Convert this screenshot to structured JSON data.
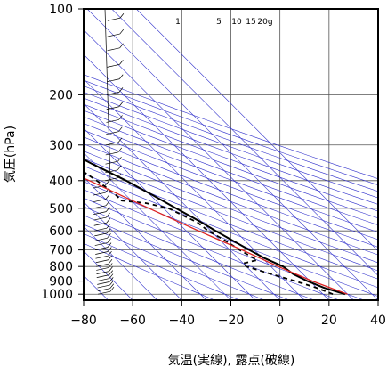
{
  "chart_data": {
    "type": "skew-t",
    "xlabel": "気温(実線), 露点(破線)",
    "ylabel": "気圧(hPa)",
    "xlim": [
      -80,
      40
    ],
    "ylim_hpa": [
      1050,
      100
    ],
    "y_scale": "log",
    "grid": true,
    "pressure_ticks": [
      100,
      200,
      300,
      400,
      500,
      600,
      700,
      800,
      900,
      1000
    ],
    "pressure_tick_labels": [
      "100",
      "200",
      "300",
      "400",
      "500",
      "600",
      "700",
      "800",
      "900",
      "1000"
    ],
    "temperature_ticks": [
      -80,
      -60,
      -40,
      -20,
      0,
      20,
      40
    ],
    "temperature_tick_labels": [
      "−80",
      "−60",
      "−40",
      "−20",
      "0",
      "20",
      "40"
    ],
    "mixing_ratio_labels": [
      "1",
      "5",
      "10",
      "15",
      "20g"
    ],
    "series": [
      {
        "style": "solid-black",
        "points": [
          {
            "p": 1000,
            "t": 29
          },
          {
            "p": 950,
            "t": 23
          },
          {
            "p": 900,
            "t": 19
          },
          {
            "p": 850,
            "t": 16
          },
          {
            "p": 800,
            "t": 15
          },
          {
            "p": 750,
            "t": 11
          },
          {
            "p": 700,
            "t": 8
          },
          {
            "p": 650,
            "t": 5
          },
          {
            "p": 600,
            "t": 2
          },
          {
            "p": 550,
            "t": -1
          },
          {
            "p": 500,
            "t": -5
          },
          {
            "p": 450,
            "t": -9
          },
          {
            "p": 400,
            "t": -14
          },
          {
            "p": 350,
            "t": -21
          },
          {
            "p": 300,
            "t": -28
          },
          {
            "p": 250,
            "t": -37
          },
          {
            "p": 200,
            "t": -47
          },
          {
            "p": 170,
            "t": -55
          },
          {
            "p": 150,
            "t": -60
          },
          {
            "p": 130,
            "t": -62
          },
          {
            "p": 110,
            "t": -65
          },
          {
            "p": 100,
            "t": -68
          }
        ]
      },
      {
        "style": "dashed-black",
        "points": [
          {
            "p": 1000,
            "t": 24
          },
          {
            "p": 950,
            "t": 20
          },
          {
            "p": 900,
            "t": 14
          },
          {
            "p": 850,
            "t": 7
          },
          {
            "p": 800,
            "t": 0
          },
          {
            "p": 780,
            "t": 0
          },
          {
            "p": 760,
            "t": 7
          },
          {
            "p": 720,
            "t": 5
          },
          {
            "p": 700,
            "t": 4
          },
          {
            "p": 650,
            "t": 2
          },
          {
            "p": 600,
            "t": -1
          },
          {
            "p": 560,
            "t": -2
          },
          {
            "p": 540,
            "t": -4
          },
          {
            "p": 520,
            "t": -6
          },
          {
            "p": 500,
            "t": -8
          },
          {
            "p": 480,
            "t": -15
          },
          {
            "p": 470,
            "t": -24
          },
          {
            "p": 450,
            "t": -24
          },
          {
            "p": 420,
            "t": -25
          },
          {
            "p": 400,
            "t": -26
          },
          {
            "p": 370,
            "t": -28
          },
          {
            "p": 350,
            "t": -35
          },
          {
            "p": 330,
            "t": -28
          },
          {
            "p": 310,
            "t": -40
          },
          {
            "p": 300,
            "t": -50
          },
          {
            "p": 280,
            "t": -50
          },
          {
            "p": 265,
            "t": -56
          },
          {
            "p": 260,
            "t": -81
          }
        ]
      },
      {
        "style": "solid-red",
        "points": [
          {
            "p": 1000,
            "t": 30
          },
          {
            "p": 900,
            "t": 21
          },
          {
            "p": 800,
            "t": 13
          },
          {
            "p": 700,
            "t": 5
          },
          {
            "p": 600,
            "t": -5
          },
          {
            "p": 500,
            "t": -16
          },
          {
            "p": 400,
            "t": -29
          },
          {
            "p": 300,
            "t": -48
          },
          {
            "p": 200,
            "t": -70
          },
          {
            "p": 150,
            "t": -82
          }
        ]
      }
    ],
    "wind_profile": {
      "pressure_levels": [
        1000,
        975,
        950,
        925,
        900,
        875,
        850,
        825,
        800,
        775,
        750,
        725,
        700,
        675,
        650,
        625,
        600,
        575,
        550,
        525,
        500,
        475,
        450,
        425,
        400,
        375,
        350,
        325,
        300,
        275,
        250,
        225,
        200,
        180,
        160,
        140,
        125,
        110,
        100
      ]
    },
    "guide_lines_colors": {
      "grid": "#555555",
      "isotherm_adiabat": "#3333cc",
      "parcel": "#dd2222",
      "profile": "#000000"
    }
  }
}
